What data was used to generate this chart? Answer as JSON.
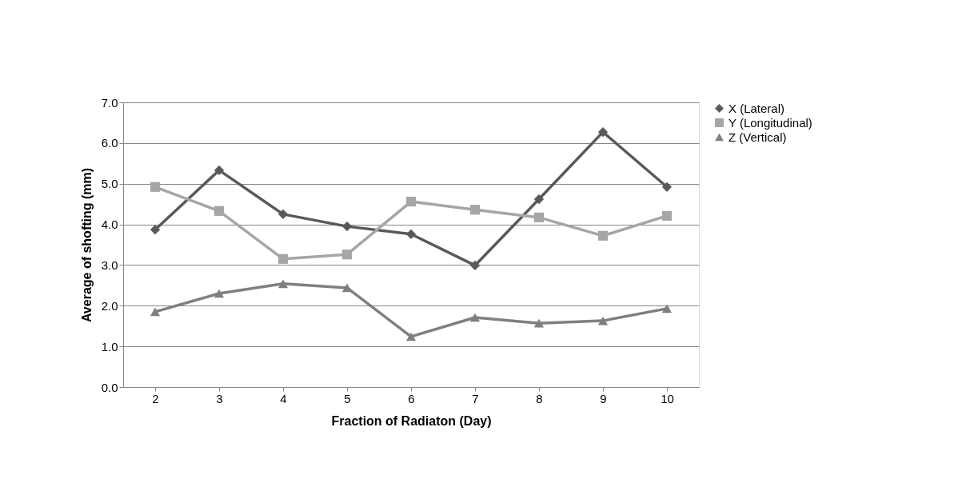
{
  "chart_data": {
    "type": "line",
    "xlabel": "Fraction of Radiaton (Day)",
    "ylabel": "Average of shofting (mm)",
    "categories": [
      "2",
      "3",
      "4",
      "5",
      "6",
      "7",
      "8",
      "9",
      "10"
    ],
    "series": [
      {
        "name": "X (Lateral)",
        "color": "#595959",
        "marker": "diamond",
        "values": [
          3.87,
          5.33,
          4.25,
          3.95,
          3.76,
          2.99,
          4.62,
          6.27,
          4.92
        ]
      },
      {
        "name": "Y (Longitudinal)",
        "color": "#a6a6a6",
        "marker": "square",
        "values": [
          4.92,
          4.33,
          3.15,
          3.26,
          4.56,
          4.36,
          4.17,
          3.72,
          4.21
        ]
      },
      {
        "name": "Z (Vertical)",
        "color": "#7f7f7f",
        "marker": "triangle",
        "values": [
          1.85,
          2.3,
          2.54,
          2.44,
          1.24,
          1.71,
          1.57,
          1.63,
          1.93
        ]
      }
    ],
    "ylim": [
      0,
      7
    ],
    "yticks": [
      {
        "value": 0,
        "label": "0.0"
      },
      {
        "value": 1,
        "label": "1.0"
      },
      {
        "value": 2,
        "label": "2.0"
      },
      {
        "value": 3,
        "label": "3.0"
      },
      {
        "value": 4,
        "label": "4.0"
      },
      {
        "value": 5,
        "label": "5.0"
      },
      {
        "value": 6,
        "label": "6.0"
      },
      {
        "value": 7,
        "label": "7.0"
      }
    ],
    "grid": "y",
    "legend": "right",
    "line_style": "solid"
  }
}
